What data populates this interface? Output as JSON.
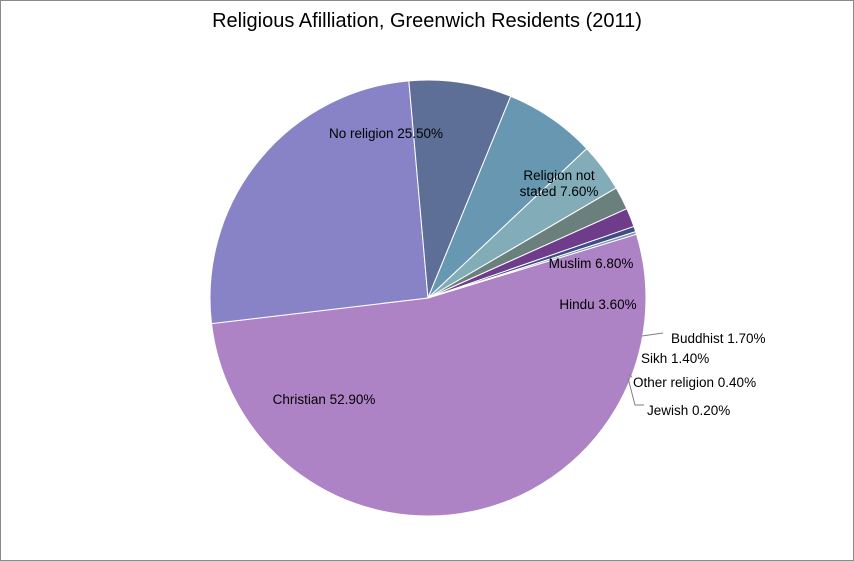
{
  "chart_data": {
    "type": "pie",
    "title": "Religious Afilliation, Greenwich Residents (2011)",
    "legend": "none",
    "slices": [
      {
        "name": "Christian",
        "value": 52.9,
        "label": "Christian 52.90%",
        "color": "#ad83c6"
      },
      {
        "name": "No religion",
        "value": 25.5,
        "label": "No religion 25.50%",
        "color": "#8783c6"
      },
      {
        "name": "Religion not stated",
        "value": 7.6,
        "label_lines": [
          "Religion not",
          "stated 7.60%"
        ],
        "color": "#5e6f97"
      },
      {
        "name": "Muslim",
        "value": 6.8,
        "label": "Muslim 6.80%",
        "color": "#6898b1"
      },
      {
        "name": "Hindu",
        "value": 3.6,
        "label": "Hindu 3.60%",
        "color": "#82adb8"
      },
      {
        "name": "Buddhist",
        "value": 1.7,
        "label": "Buddhist 1.70%",
        "color": "#6b807c"
      },
      {
        "name": "Sikh",
        "value": 1.4,
        "label": "Sikh 1.40%",
        "color": "#6f3c8b"
      },
      {
        "name": "Other religion",
        "value": 0.4,
        "label": "Other religion 0.40%",
        "color": "#3f4d86"
      },
      {
        "name": "Jewish",
        "value": 0.2,
        "label": "Jewish 0.20%",
        "color": "#7f97ab"
      }
    ]
  }
}
